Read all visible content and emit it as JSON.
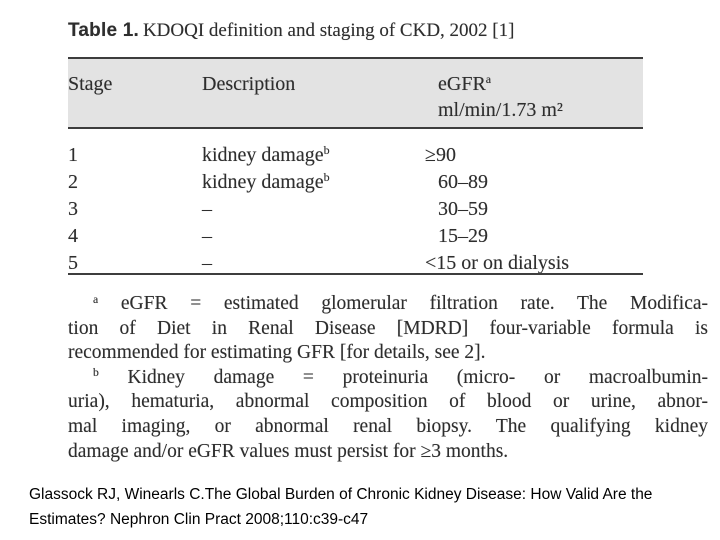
{
  "title": {
    "label": "Table 1.",
    "text": "KDOQI definition and staging of CKD, 2002 [1]"
  },
  "table": {
    "columns": {
      "stage": "Stage",
      "description": "Description",
      "egfr_name": "eGFR",
      "egfr_sup": "a",
      "egfr_units": "ml/min/1.73 m²"
    },
    "rows": [
      {
        "stage": "1",
        "desc": "kidney damage",
        "desc_sup": "b",
        "egfr": "≥90"
      },
      {
        "stage": "2",
        "desc": "kidney damage",
        "desc_sup": "b",
        "egfr": "60–89"
      },
      {
        "stage": "3",
        "desc": "–",
        "desc_sup": "",
        "egfr": "30–59"
      },
      {
        "stage": "4",
        "desc": "–",
        "desc_sup": "",
        "egfr": "15–29"
      },
      {
        "stage": "5",
        "desc": "–",
        "desc_sup": "",
        "egfr": "<15 or on dialysis"
      }
    ]
  },
  "footnotes": {
    "lines": [
      {
        "sup": "a",
        "text": " eGFR = estimated glomerular filtration rate. The Modifica-"
      },
      {
        "sup": "",
        "text": "tion of Diet in Renal Disease [MDRD] four-variable formula is"
      },
      {
        "sup": "",
        "text": "recommended for estimating GFR [for details, see 2]."
      },
      {
        "sup": "b",
        "text": " Kidney damage = proteinuria (micro- or macroalbumin-"
      },
      {
        "sup": "",
        "text": "uria), hematuria, abnormal composition of blood or urine, abnor-"
      },
      {
        "sup": "",
        "text": "mal imaging, or abnormal renal biopsy. The qualifying kidney"
      },
      {
        "sup": "",
        "text": "damage and/or eGFR values must persist for ≥3 months."
      }
    ]
  },
  "citation": {
    "line1": "Glassock RJ, Winearls C.The Global Burden of Chronic Kidney Disease: How Valid Are the",
    "line2": "Estimates? Nephron Clin Pract 2008;110:c39-c47"
  },
  "colors": {
    "header_bg": "#e3e3e3",
    "rule": "#3d3d3d",
    "scan_text": "#2e2e2e",
    "citation_text": "#000000"
  }
}
